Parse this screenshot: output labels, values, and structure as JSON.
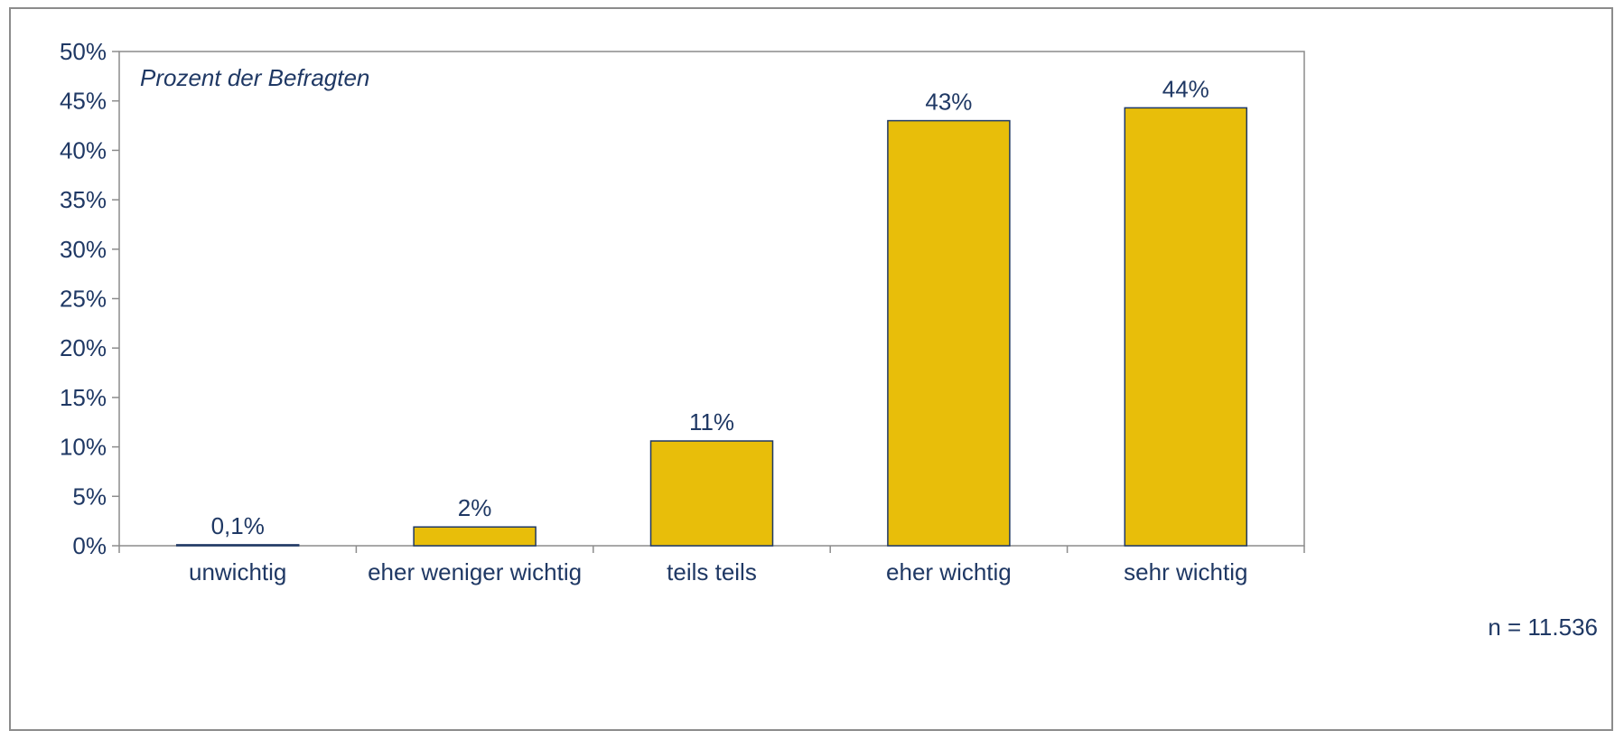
{
  "chart_data": {
    "type": "bar",
    "subtitle": "Prozent der Befragten",
    "categories": [
      "unwichtig",
      "eher weniger wichtig",
      "teils teils",
      "eher wichtig",
      "sehr wichtig"
    ],
    "values": [
      0.1,
      1.9,
      10.6,
      43.0,
      44.3
    ],
    "data_labels": [
      "0,1%",
      "2%",
      "11%",
      "43%",
      "44%"
    ],
    "ylim": [
      0,
      50
    ],
    "yticks": [
      0,
      5,
      10,
      15,
      20,
      25,
      30,
      35,
      40,
      45,
      50
    ],
    "ytick_labels": [
      "0%",
      "5%",
      "10%",
      "15%",
      "20%",
      "25%",
      "30%",
      "35%",
      "40%",
      "45%",
      "50%"
    ],
    "grid": false,
    "legend": "none",
    "note": "n = 11.536",
    "colors": {
      "bar_fill": "#e8be0a",
      "bar_stroke": "#1f3864",
      "axis": "#8c8c8c",
      "text": "#1f3864"
    }
  }
}
